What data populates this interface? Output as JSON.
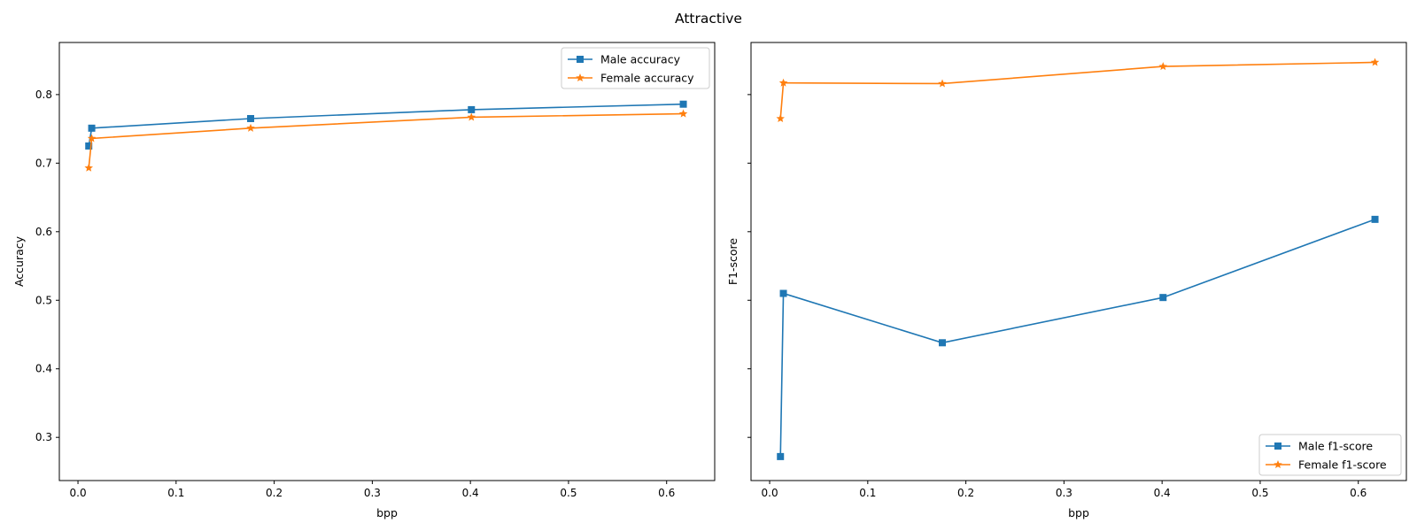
{
  "title": "Attractive",
  "chart_data": [
    {
      "type": "line",
      "xlabel": "bpp",
      "ylabel": "Accuracy",
      "xlim": [
        -0.019,
        0.649
      ],
      "ylim": [
        0.237,
        0.876
      ],
      "xticks": [
        "0.0",
        "0.1",
        "0.2",
        "0.3",
        "0.4",
        "0.5",
        "0.6"
      ],
      "yticks": [
        "0.3",
        "0.4",
        "0.5",
        "0.6",
        "0.7",
        "0.8"
      ],
      "xtick_values": [
        0.0,
        0.1,
        0.2,
        0.3,
        0.4,
        0.5,
        0.6
      ],
      "ytick_values": [
        0.3,
        0.4,
        0.5,
        0.6,
        0.7,
        0.8
      ],
      "legend_position": "upper right",
      "series": [
        {
          "name": "Male accuracy",
          "color": "#1f77b4",
          "marker": "square",
          "x": [
            0.011,
            0.014,
            0.176,
            0.401,
            0.617
          ],
          "y": [
            0.725,
            0.751,
            0.765,
            0.778,
            0.786
          ]
        },
        {
          "name": "Female accuracy",
          "color": "#ff7f0e",
          "marker": "star",
          "x": [
            0.011,
            0.014,
            0.176,
            0.401,
            0.617
          ],
          "y": [
            0.693,
            0.736,
            0.751,
            0.767,
            0.772
          ]
        }
      ]
    },
    {
      "type": "line",
      "xlabel": "bpp",
      "ylabel": "F1-score",
      "xlim": [
        -0.019,
        0.649
      ],
      "ylim": [
        0.237,
        0.876
      ],
      "xticks": [
        "0.0",
        "0.1",
        "0.2",
        "0.3",
        "0.4",
        "0.5",
        "0.6"
      ],
      "yticks": [],
      "xtick_values": [
        0.0,
        0.1,
        0.2,
        0.3,
        0.4,
        0.5,
        0.6
      ],
      "ytick_values": [
        0.3,
        0.4,
        0.5,
        0.6,
        0.7,
        0.8
      ],
      "legend_position": "lower right",
      "series": [
        {
          "name": "Male f1-score",
          "color": "#1f77b4",
          "marker": "square",
          "x": [
            0.011,
            0.014,
            0.176,
            0.401,
            0.617
          ],
          "y": [
            0.272,
            0.51,
            0.438,
            0.504,
            0.618
          ]
        },
        {
          "name": "Female f1-score",
          "color": "#ff7f0e",
          "marker": "star",
          "x": [
            0.011,
            0.014,
            0.176,
            0.401,
            0.617
          ],
          "y": [
            0.765,
            0.817,
            0.816,
            0.841,
            0.847
          ]
        }
      ]
    }
  ]
}
